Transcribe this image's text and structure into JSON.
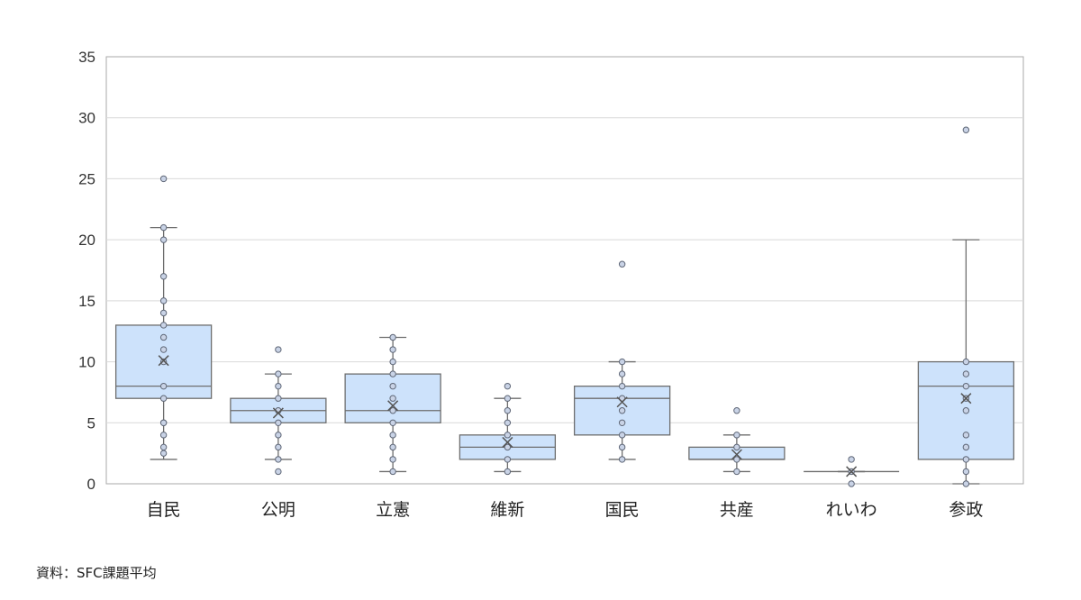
{
  "chart_data": {
    "type": "boxplot",
    "ylim": [
      0,
      35
    ],
    "yticks": [
      0,
      5,
      10,
      15,
      20,
      25,
      30,
      35
    ],
    "grid": true,
    "categories": [
      "自民",
      "公明",
      "立憲",
      "維新",
      "国民",
      "共産",
      "れいわ",
      "参政"
    ],
    "boxes": [
      {
        "category": "自民",
        "min": 2,
        "q1": 7,
        "median": 8,
        "q3": 13,
        "max": 21,
        "mean": 10.1,
        "points": [
          2.5,
          3,
          4,
          5,
          5,
          7,
          8,
          10,
          11,
          12,
          13,
          14,
          15,
          17,
          20,
          21
        ],
        "outliers": [
          25
        ]
      },
      {
        "category": "公明",
        "min": 2,
        "q1": 5,
        "median": 6,
        "q3": 7,
        "max": 9,
        "mean": 5.8,
        "points": [
          2,
          3,
          4,
          5,
          6,
          7,
          8,
          9
        ],
        "outliers": [
          1,
          11
        ]
      },
      {
        "category": "立憲",
        "min": 1,
        "q1": 5,
        "median": 6,
        "q3": 9,
        "max": 12,
        "mean": 6.4,
        "points": [
          1,
          2,
          3,
          4,
          5,
          6,
          7,
          8,
          9,
          10,
          11,
          12
        ],
        "outliers": []
      },
      {
        "category": "維新",
        "min": 1,
        "q1": 2,
        "median": 3,
        "q3": 4,
        "max": 7,
        "mean": 3.4,
        "points": [
          1,
          2,
          3,
          4,
          5,
          6,
          7
        ],
        "outliers": [
          8
        ]
      },
      {
        "category": "国民",
        "min": 2,
        "q1": 4,
        "median": 7,
        "q3": 8,
        "max": 10,
        "mean": 6.7,
        "points": [
          2,
          3,
          4,
          5,
          6,
          7,
          8,
          9,
          10
        ],
        "outliers": [
          18
        ]
      },
      {
        "category": "共産",
        "min": 1,
        "q1": 2,
        "median": 2,
        "q3": 3,
        "max": 4,
        "mean": 2.4,
        "points": [
          1,
          2,
          3,
          4
        ],
        "outliers": [
          6
        ]
      },
      {
        "category": "れいわ",
        "min": 1,
        "q1": 1,
        "median": 1,
        "q3": 1,
        "max": 1,
        "mean": 1,
        "points": [
          1
        ],
        "outliers": [
          0,
          2
        ]
      },
      {
        "category": "参政",
        "min": 0,
        "q1": 2,
        "median": 8,
        "q3": 10,
        "max": 20,
        "mean": 7,
        "points": [
          0,
          1,
          2,
          3,
          4,
          6,
          7,
          8,
          9,
          10
        ],
        "outliers": [
          29
        ]
      }
    ]
  },
  "source_text": "資料：SFC課題平均",
  "colors": {
    "box_fill": "#cde2fb",
    "box_stroke": "#6e6e6e",
    "point_fill": "#c9d3e6",
    "grid": "#d9d9d9",
    "frame": "#aaaaaa"
  }
}
